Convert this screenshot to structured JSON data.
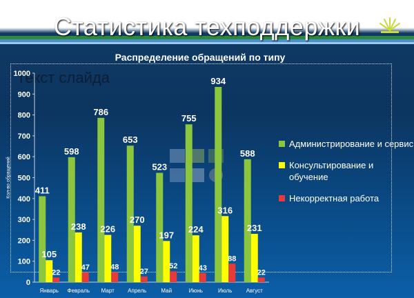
{
  "slide": {
    "title": "Статистика техподдержки",
    "bullet_text": "Текст слайда"
  },
  "colors": {
    "series": [
      "#8cc63f",
      "#ffff00",
      "#e8393b"
    ],
    "text": "#ffffff"
  },
  "chart_data": {
    "type": "bar",
    "title": "Распределение обращений по типу",
    "xlabel": "",
    "ylabel": "Кол-во обращений",
    "ylim": [
      0,
      1000
    ],
    "yticks": [
      0,
      100,
      200,
      300,
      400,
      500,
      600,
      700,
      800,
      900,
      1000
    ],
    "grid": false,
    "legend_position": "right",
    "categories": [
      "Январь",
      "Февраль",
      "Март",
      "Апрель",
      "Май",
      "Июнь",
      "Июль",
      "Август"
    ],
    "series": [
      {
        "name": "Администрирование и сервис",
        "values": [
          411,
          598,
          786,
          653,
          523,
          755,
          934,
          588
        ]
      },
      {
        "name": "Консультирование и обучение",
        "values": [
          105,
          238,
          226,
          270,
          197,
          224,
          316,
          231
        ]
      },
      {
        "name": "Некорректная работа",
        "values": [
          22,
          47,
          48,
          27,
          52,
          43,
          88,
          22
        ]
      }
    ]
  }
}
